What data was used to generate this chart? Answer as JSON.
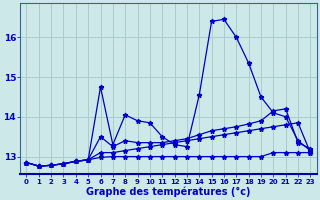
{
  "xlabel": "Graphe des températures (°c)",
  "background_color": "#cce8e8",
  "grid_color": "#aacccc",
  "line_color": "#0000cc",
  "hours": [
    0,
    1,
    2,
    3,
    4,
    5,
    6,
    7,
    8,
    9,
    10,
    11,
    12,
    13,
    14,
    15,
    16,
    17,
    18,
    19,
    20,
    21,
    22,
    23
  ],
  "line_main": [
    12.85,
    12.76,
    12.78,
    12.82,
    12.88,
    12.92,
    14.75,
    13.3,
    14.05,
    13.9,
    13.85,
    13.5,
    13.3,
    13.25,
    14.55,
    16.4,
    16.45,
    16.0,
    15.35,
    14.5,
    14.1,
    14.0,
    13.4,
    13.15
  ],
  "line_flat": [
    12.85,
    12.76,
    12.78,
    12.82,
    12.88,
    12.92,
    12.98,
    13.0,
    13.0,
    13.0,
    13.0,
    13.0,
    13.0,
    13.0,
    13.0,
    13.0,
    13.0,
    13.0,
    13.0,
    13.0,
    13.1,
    13.1,
    13.1,
    13.1
  ],
  "line_gradual1": [
    12.85,
    12.76,
    12.78,
    12.82,
    12.88,
    12.92,
    13.5,
    13.25,
    13.4,
    13.35,
    13.35,
    13.35,
    13.4,
    13.45,
    13.55,
    13.65,
    13.7,
    13.75,
    13.82,
    13.9,
    14.15,
    14.2,
    13.35,
    13.2
  ],
  "line_gradual2": [
    12.85,
    12.76,
    12.78,
    12.82,
    12.88,
    12.92,
    13.1,
    13.1,
    13.15,
    13.2,
    13.25,
    13.3,
    13.35,
    13.4,
    13.45,
    13.5,
    13.55,
    13.6,
    13.65,
    13.7,
    13.75,
    13.8,
    13.85,
    13.1
  ],
  "ylim": [
    12.55,
    16.85
  ],
  "yticks": [
    13,
    14,
    15,
    16
  ],
  "xlim": [
    -0.5,
    23.5
  ]
}
